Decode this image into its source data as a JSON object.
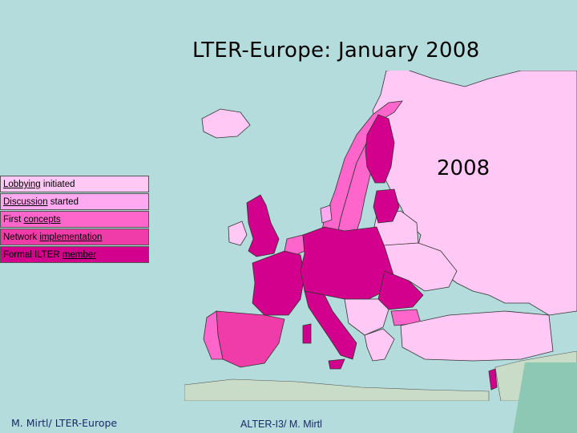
{
  "title": "LTER-Europe: January 2008",
  "map_year_label": "2008",
  "legend": {
    "items": [
      {
        "pre": "",
        "u": "Lobbying",
        "post": " initiated",
        "color": "#ffc8f5"
      },
      {
        "pre": "",
        "u": "Discussion",
        "post": " started",
        "color": "#ffaaf0"
      },
      {
        "pre": "First ",
        "u": "concepts",
        "post": "",
        "color": "#ff66cc"
      },
      {
        "pre": "Network ",
        "u": "implementation",
        "post": "",
        "color": "#f03ca8"
      },
      {
        "pre": "Formal ILTER ",
        "u": "member",
        "post": "",
        "color": "#d2008c"
      }
    ]
  },
  "footer": {
    "left": "M. Mirtl/ LTER-Europe",
    "center": "ALTER-I3/ M. Mirtl"
  },
  "colors": {
    "sea": "#b4dcdc",
    "non_participating": "#c8dcc8",
    "corner_teal": "#8cc8b4",
    "border": "#333333"
  }
}
